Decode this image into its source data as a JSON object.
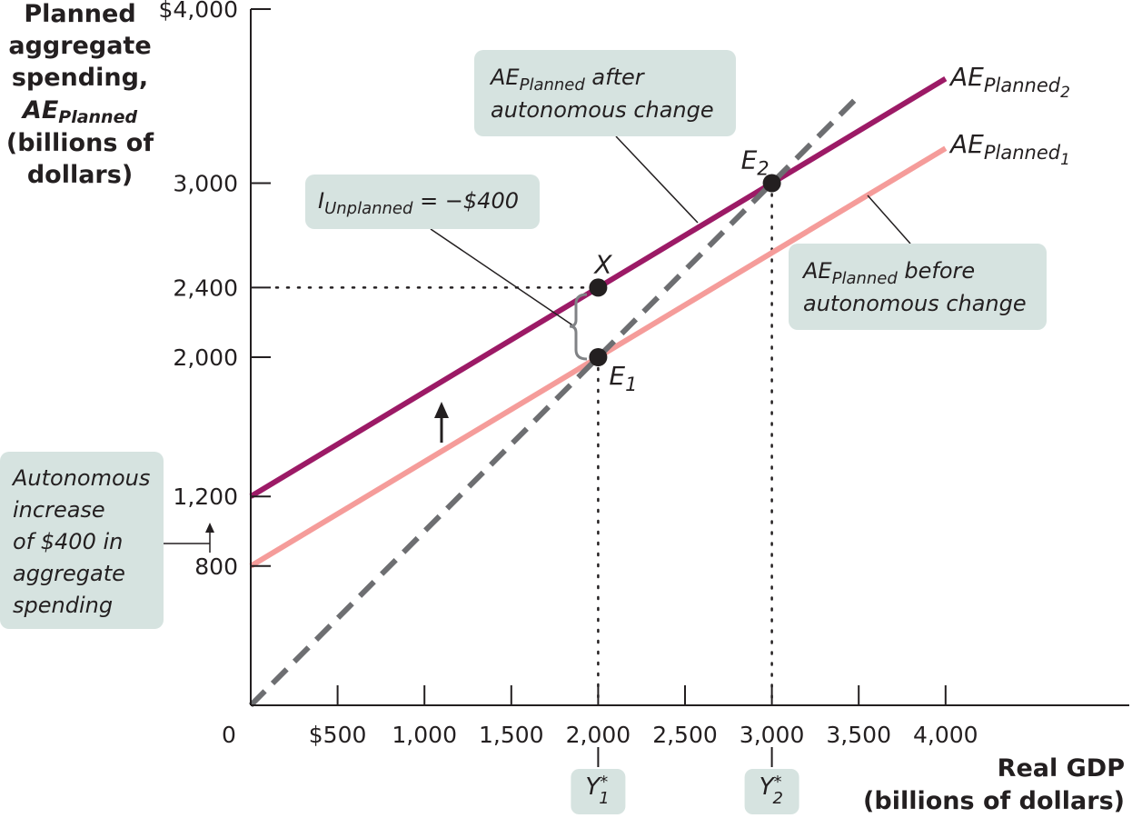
{
  "chart_data": {
    "type": "line",
    "title": "",
    "ylabel": {
      "line1": "Planned",
      "line2": "aggregate",
      "line3": "spending,",
      "line4_base": "AE",
      "line4_sub": "Planned",
      "line5": "(billions of",
      "line6": "dollars)"
    },
    "xlabel": {
      "line1": "Real GDP",
      "line2": "(billions of dollars)"
    },
    "origin_label": "0",
    "x_ticks": [
      {
        "value": 500,
        "label": "$500"
      },
      {
        "value": 1000,
        "label": "1,000"
      },
      {
        "value": 1500,
        "label": "1,500"
      },
      {
        "value": 2000,
        "label": "2,000"
      },
      {
        "value": 2500,
        "label": "2,500"
      },
      {
        "value": 3000,
        "label": "3,000"
      },
      {
        "value": 3500,
        "label": "3,500"
      },
      {
        "value": 4000,
        "label": "4,000"
      }
    ],
    "y_ticks": [
      {
        "value": 800,
        "label": "800"
      },
      {
        "value": 1200,
        "label": "1,200"
      },
      {
        "value": 2000,
        "label": "2,000"
      },
      {
        "value": 2400,
        "label": "2,400"
      },
      {
        "value": 3000,
        "label": "3,000"
      },
      {
        "value": 4000,
        "label": "$4,000"
      }
    ],
    "xlim": [
      0,
      5000
    ],
    "ylim": [
      0,
      4000
    ],
    "grid": false,
    "series": [
      {
        "id": "ae1",
        "name_base": "AE",
        "name_sub": "Planned",
        "name_subsub": "1",
        "x": [
          0,
          4000
        ],
        "y": [
          800,
          3200
        ],
        "color": "#f59c9a"
      },
      {
        "id": "ae2",
        "name_base": "AE",
        "name_sub": "Planned",
        "name_subsub": "2",
        "x": [
          0,
          4000
        ],
        "y": [
          1200,
          3600
        ],
        "color": "#9c1a66"
      },
      {
        "id": "line45",
        "x": [
          0,
          3500
        ],
        "y": [
          0,
          3500
        ],
        "color": "#6d6e71",
        "dashed": true
      }
    ],
    "points": [
      {
        "id": "E1",
        "label_base": "E",
        "label_sub": "1",
        "x": 2000,
        "y": 2000
      },
      {
        "id": "X",
        "label_base": "X",
        "label_sub": "",
        "x": 2000,
        "y": 2400
      },
      {
        "id": "E2",
        "label_base": "E",
        "label_sub": "2",
        "x": 3000,
        "y": 3000
      }
    ],
    "x_markers": [
      {
        "value": 2000,
        "label_base": "Y",
        "label_sup": "*",
        "label_sub": "1"
      },
      {
        "value": 3000,
        "label_base": "Y",
        "label_sup": "*",
        "label_sub": "2"
      }
    ],
    "annotations": {
      "after": {
        "base": "AE",
        "sub": "Planned",
        "line1_rest": " after",
        "line2": "autonomous change"
      },
      "before": {
        "base": "AE",
        "sub": "Planned",
        "line1_rest": " before",
        "line2": "autonomous change"
      },
      "unplanned": {
        "base": "I",
        "sub": "Unplanned",
        "rest": " = −$400"
      },
      "autonomous": [
        "Autonomous",
        "increase",
        "of $400 in",
        "aggregate",
        "spending"
      ]
    },
    "colors": {
      "ae1": "#f59c9a",
      "ae2": "#9c1a66",
      "line45": "#6d6e71",
      "annotation_box": "#d6e3e0",
      "axis": "#231f20"
    }
  }
}
